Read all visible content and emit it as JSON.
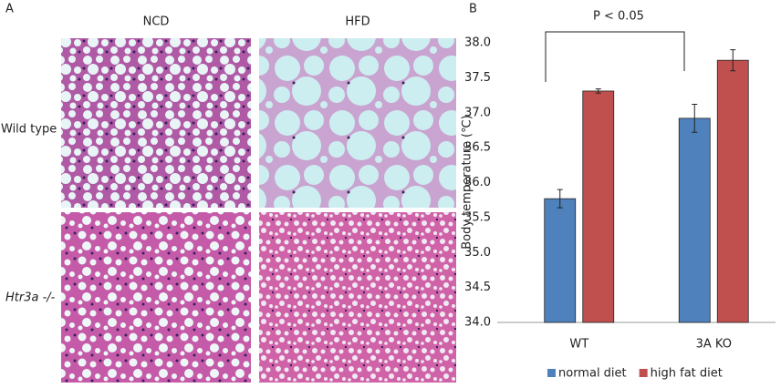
{
  "panel_a": {
    "label": "A",
    "columns": [
      "NCD",
      "HFD"
    ],
    "rows": [
      "Wild type",
      "Htr3a -/-"
    ]
  },
  "chart_data": {
    "type": "bar",
    "panel_label": "B",
    "annotation": "P < 0.05",
    "ylabel": "Body temperature (℃)",
    "categories": [
      "WT",
      "3A KO"
    ],
    "series": [
      {
        "name": "normal diet",
        "color": "#4f81bd",
        "values": [
          35.77,
          36.92
        ],
        "errors": [
          0.13,
          0.2
        ]
      },
      {
        "name": "high fat diet",
        "color": "#c0504d",
        "values": [
          37.31,
          37.75
        ],
        "errors": [
          0.03,
          0.15
        ]
      }
    ],
    "ylim": [
      34,
      38
    ],
    "yticks": [
      {
        "value": 34,
        "label": "34.0"
      },
      34.5,
      {
        "value": 35,
        "label": "35.0"
      },
      35.5,
      {
        "value": 36,
        "label": "36.0"
      },
      36.5,
      {
        "value": 37,
        "label": "37.0"
      },
      37.5,
      {
        "value": 38,
        "label": "38.0"
      }
    ],
    "legend": "bottom"
  }
}
